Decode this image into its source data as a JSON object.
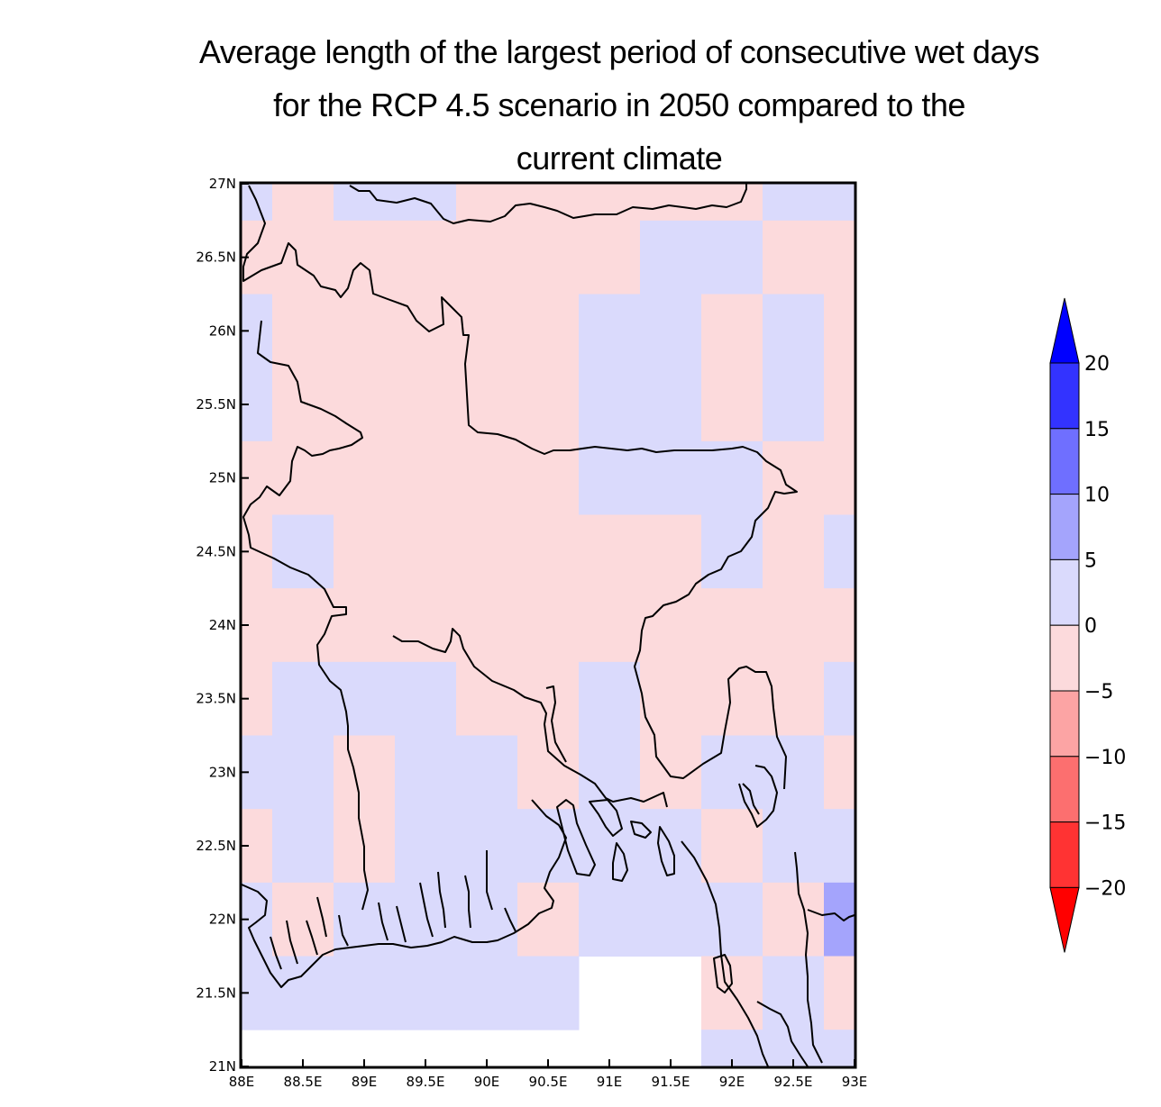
{
  "title": {
    "line1": "Average length of the largest period of consecutive wet days",
    "line2": "for the RCP 4.5 scenario in 2050 compared to the",
    "line3": "current climate"
  },
  "chart_data": {
    "type": "heatmap",
    "lon_range": [
      88,
      93
    ],
    "lat_range": [
      21,
      27
    ],
    "x_ticks": [
      "88E",
      "88.5E",
      "89E",
      "89.5E",
      "90E",
      "90.5E",
      "91E",
      "91.5E",
      "92E",
      "92.5E",
      "93E"
    ],
    "y_ticks": [
      "21N",
      "21.5N",
      "22N",
      "22.5N",
      "23N",
      "23.5N",
      "24N",
      "24.5N",
      "25N",
      "25.5N",
      "26N",
      "26.5N",
      "27N"
    ],
    "cell_columns_lon": [
      "88.00-88.25",
      "88.25-88.75",
      "88.75-89.25",
      "89.25-89.75",
      "89.75-90.25",
      "90.25-90.75",
      "90.75-91.25",
      "91.25-91.75",
      "91.75-92.25",
      "92.25-92.75",
      "92.75-93.00"
    ],
    "cell_rows_lat_top_to_bottom": [
      "26.75-27.00",
      "26.25-26.75",
      "25.75-26.25",
      "25.25-25.75",
      "24.75-25.25",
      "24.25-24.75",
      "23.75-24.25",
      "23.25-23.75",
      "22.75-23.25",
      "22.25-22.75",
      "21.75-22.25",
      "21.25-21.75",
      "21.00-21.25"
    ],
    "category_legend": {
      "N": "no data",
      "A": "-5 to 0",
      "B": "0 to 5",
      "C": "5 to 10"
    },
    "grid": [
      "BABBAAAAABB",
      "AAAAAAABBAA",
      "BAAAAABBABA",
      "BAAAAABBABA",
      "AAAAAABBBAA",
      "ABAAAAAABAB",
      "AAAAAAAAAAA",
      "ABBBAABAAAB",
      "BBABBABABBA",
      "ABABBBBBABB",
      "BABBBABBBAC",
      "BBBBBBNNABA",
      "NNNNNNNNBBB"
    ],
    "colorbar": {
      "levels": [
        "20",
        "15",
        "10",
        "5",
        "0",
        "−5",
        "−10",
        "−15",
        "−20"
      ],
      "colors": [
        "#0000ff",
        "#3333ff",
        "#6f6fff",
        "#a4a4fc",
        "#dadafc",
        "#fcdadc",
        "#fca4a4",
        "#fc6f6f",
        "#ff3333",
        "#ff0000"
      ]
    }
  }
}
